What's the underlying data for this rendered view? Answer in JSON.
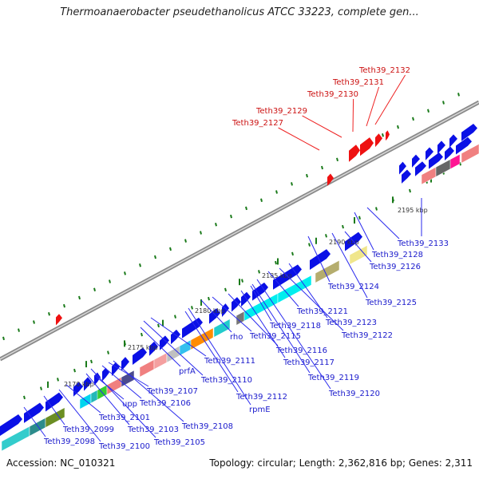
{
  "title": "Thermoanaerobacter pseudethanolicus ATCC 33223, complete gen...",
  "footer": {
    "accession": "Accession: NC_010321",
    "topology": "Topology: circular; Length: 2,362,816 bp; Genes: 2,311"
  },
  "colors": {
    "forward_gene": "#0a10e6",
    "selected_gene": "#ee1111",
    "backbone": "#8a8a8a",
    "gc_skew_tick": "#1a7a1a",
    "gene_label": "#1a1acc",
    "selected_label": "#cc1111",
    "leader_line": "#2a2aee",
    "selected_leader": "#ee2222"
  },
  "scale_labels": [
    "2170 kbp",
    "2175 kbp",
    "2180 kbp",
    "2185 kbp",
    "2190 kbp",
    "2195 kbp"
  ],
  "gene_labels_blue": [
    "Teth39_2098",
    "Teth39_2099",
    "Teth39_2100",
    "Teth39_2101",
    "upp",
    "Teth39_2103",
    "Teth39_2105",
    "Teth39_2106",
    "Teth39_2107",
    "Teth39_2108",
    "prfA",
    "Teth39_2110",
    "Teth39_2111",
    "Teth39_2112",
    "rpmE",
    "rho",
    "Teth39_2115",
    "Teth39_2116",
    "Teth39_2117",
    "Teth39_2118",
    "Teth39_2119",
    "Teth39_2120",
    "Teth39_2121",
    "Teth39_2122",
    "Teth39_2123",
    "Teth39_2124",
    "Teth39_2125",
    "Teth39_2126",
    "Teth39_2128",
    "Teth39_2133"
  ],
  "gene_labels_red": [
    "Teth39_2127",
    "Teth39_2129",
    "Teth39_2130",
    "Teth39_2131",
    "Teth39_2132"
  ]
}
